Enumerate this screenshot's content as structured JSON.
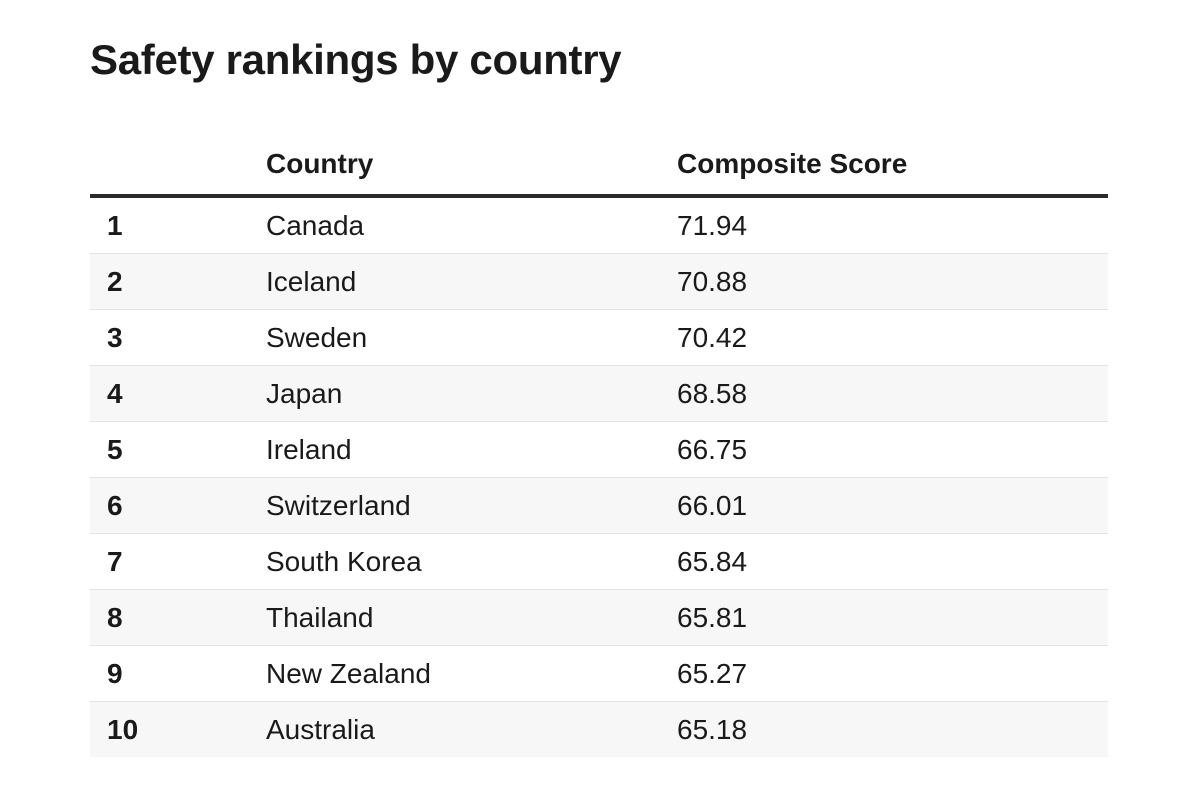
{
  "title": "Safety rankings by country",
  "columns": {
    "rank": "",
    "country": "Country",
    "score": "Composite Score"
  },
  "chart_data": {
    "type": "table",
    "title": "Safety rankings by country",
    "headers": [
      "",
      "Country",
      "Composite Score"
    ],
    "rows": [
      {
        "rank": "1",
        "country": "Canada",
        "score": "71.94"
      },
      {
        "rank": "2",
        "country": "Iceland",
        "score": "70.88"
      },
      {
        "rank": "3",
        "country": "Sweden",
        "score": "70.42"
      },
      {
        "rank": "4",
        "country": "Japan",
        "score": "68.58"
      },
      {
        "rank": "5",
        "country": "Ireland",
        "score": "66.75"
      },
      {
        "rank": "6",
        "country": "Switzerland",
        "score": "66.01"
      },
      {
        "rank": "7",
        "country": "South Korea",
        "score": "65.84"
      },
      {
        "rank": "8",
        "country": "Thailand",
        "score": "65.81"
      },
      {
        "rank": "9",
        "country": "New Zealand",
        "score": "65.27"
      },
      {
        "rank": "10",
        "country": "Australia",
        "score": "65.18"
      }
    ]
  }
}
